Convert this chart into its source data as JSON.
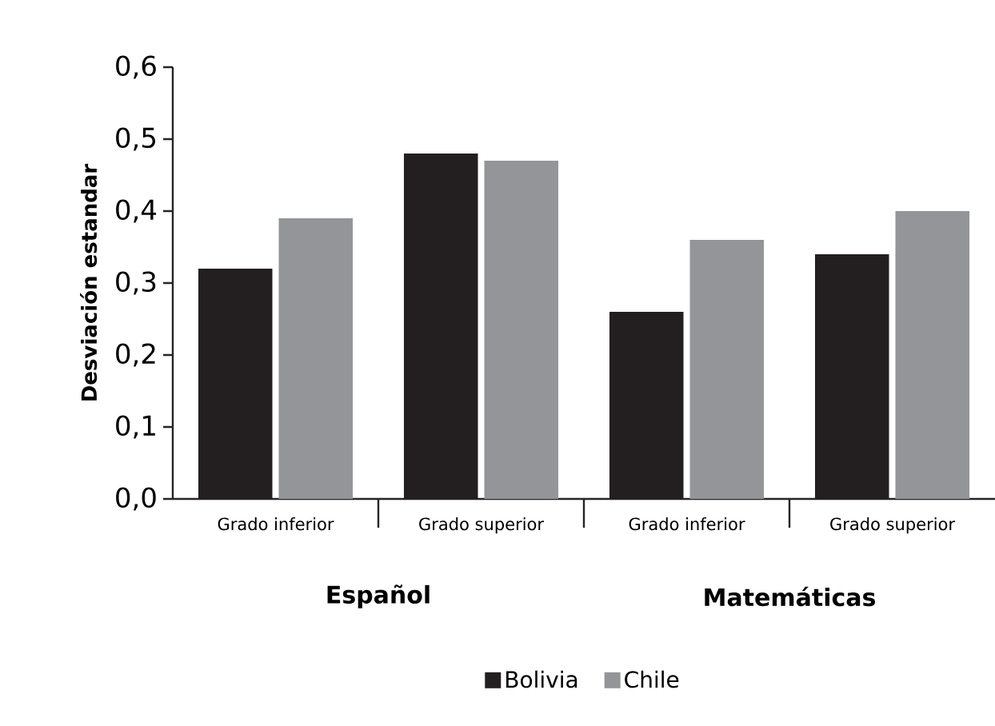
{
  "chart_data": {
    "type": "bar",
    "ylabel": "Desviación estandar",
    "categories": [
      "Grado inferior",
      "Grado superior",
      "Grado inferior",
      "Grado superior"
    ],
    "series": [
      {
        "name": "Bolivia",
        "color": "#231f20",
        "values": [
          0.32,
          0.48,
          0.26,
          0.34
        ]
      },
      {
        "name": "Chile",
        "color": "#939598",
        "values": [
          0.39,
          0.47,
          0.36,
          0.4
        ]
      }
    ],
    "ylim": [
      0,
      0.6
    ],
    "yticks": [
      {
        "value": 0,
        "label": "0,0"
      },
      {
        "value": 0.1,
        "label": "0,1"
      },
      {
        "value": 0.2,
        "label": "0,2"
      },
      {
        "value": 0.3,
        "label": "0,3"
      },
      {
        "value": 0.4,
        "label": "0,4"
      },
      {
        "value": 0.5,
        "label": "0,5"
      },
      {
        "value": 0.6,
        "label": "0,6"
      }
    ],
    "annotations": [
      "Español",
      "Matemáticas"
    ],
    "legend": "bottom",
    "grid": false
  }
}
